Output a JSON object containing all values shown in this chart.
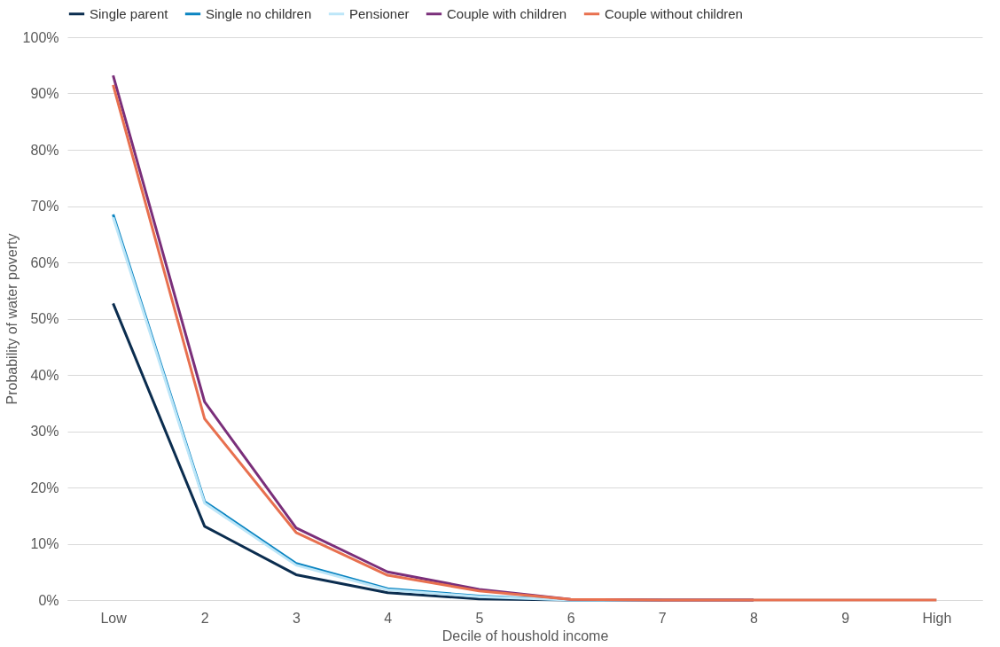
{
  "chart_data": {
    "type": "line",
    "xlabel": "Decile of houshold income",
    "ylabel": "Probability of water poverty",
    "categories": [
      "Low",
      "2",
      "3",
      "4",
      "5",
      "6",
      "7",
      "8",
      "9",
      "High"
    ],
    "series": [
      {
        "name": "Single parent",
        "color": "#0b2d4f",
        "values": [
          52.7,
          13.1,
          4.5,
          1.3,
          0.2,
          0,
          0,
          0,
          null,
          null
        ]
      },
      {
        "name": "Single no children",
        "color": "#0a84c1",
        "values": [
          68.5,
          17.5,
          6.5,
          2.0,
          0.7,
          0,
          0,
          null,
          null,
          null
        ]
      },
      {
        "name": "Pensioner",
        "color": "#bde6f8",
        "values": [
          68.0,
          17.2,
          6.2,
          1.8,
          0.6,
          0,
          0,
          0,
          0,
          0
        ]
      },
      {
        "name": "Couple with children",
        "color": "#7a2f7a",
        "values": [
          93.2,
          35.2,
          12.8,
          5.0,
          1.9,
          0.1,
          0,
          0,
          null,
          null
        ]
      },
      {
        "name": "Couple without children",
        "color": "#e8704f",
        "values": [
          91.5,
          32.2,
          12.0,
          4.4,
          1.6,
          0.1,
          0,
          0,
          0,
          0
        ]
      }
    ],
    "ylim": [
      0,
      100
    ],
    "yticks": [
      {
        "value": 0,
        "label": "0%"
      },
      {
        "value": 10,
        "label": "10%"
      },
      {
        "value": 20,
        "label": "20%"
      },
      {
        "value": 30,
        "label": "30%"
      },
      {
        "value": 40,
        "label": "40%"
      },
      {
        "value": 50,
        "label": "50%"
      },
      {
        "value": 60,
        "label": "60%"
      },
      {
        "value": 70,
        "label": "70%"
      },
      {
        "value": 80,
        "label": "80%"
      },
      {
        "value": 90,
        "label": "90%"
      },
      {
        "value": 100,
        "label": "100%"
      }
    ],
    "grid": "y",
    "legend": "top",
    "marker": "none",
    "line_style": "solid"
  }
}
